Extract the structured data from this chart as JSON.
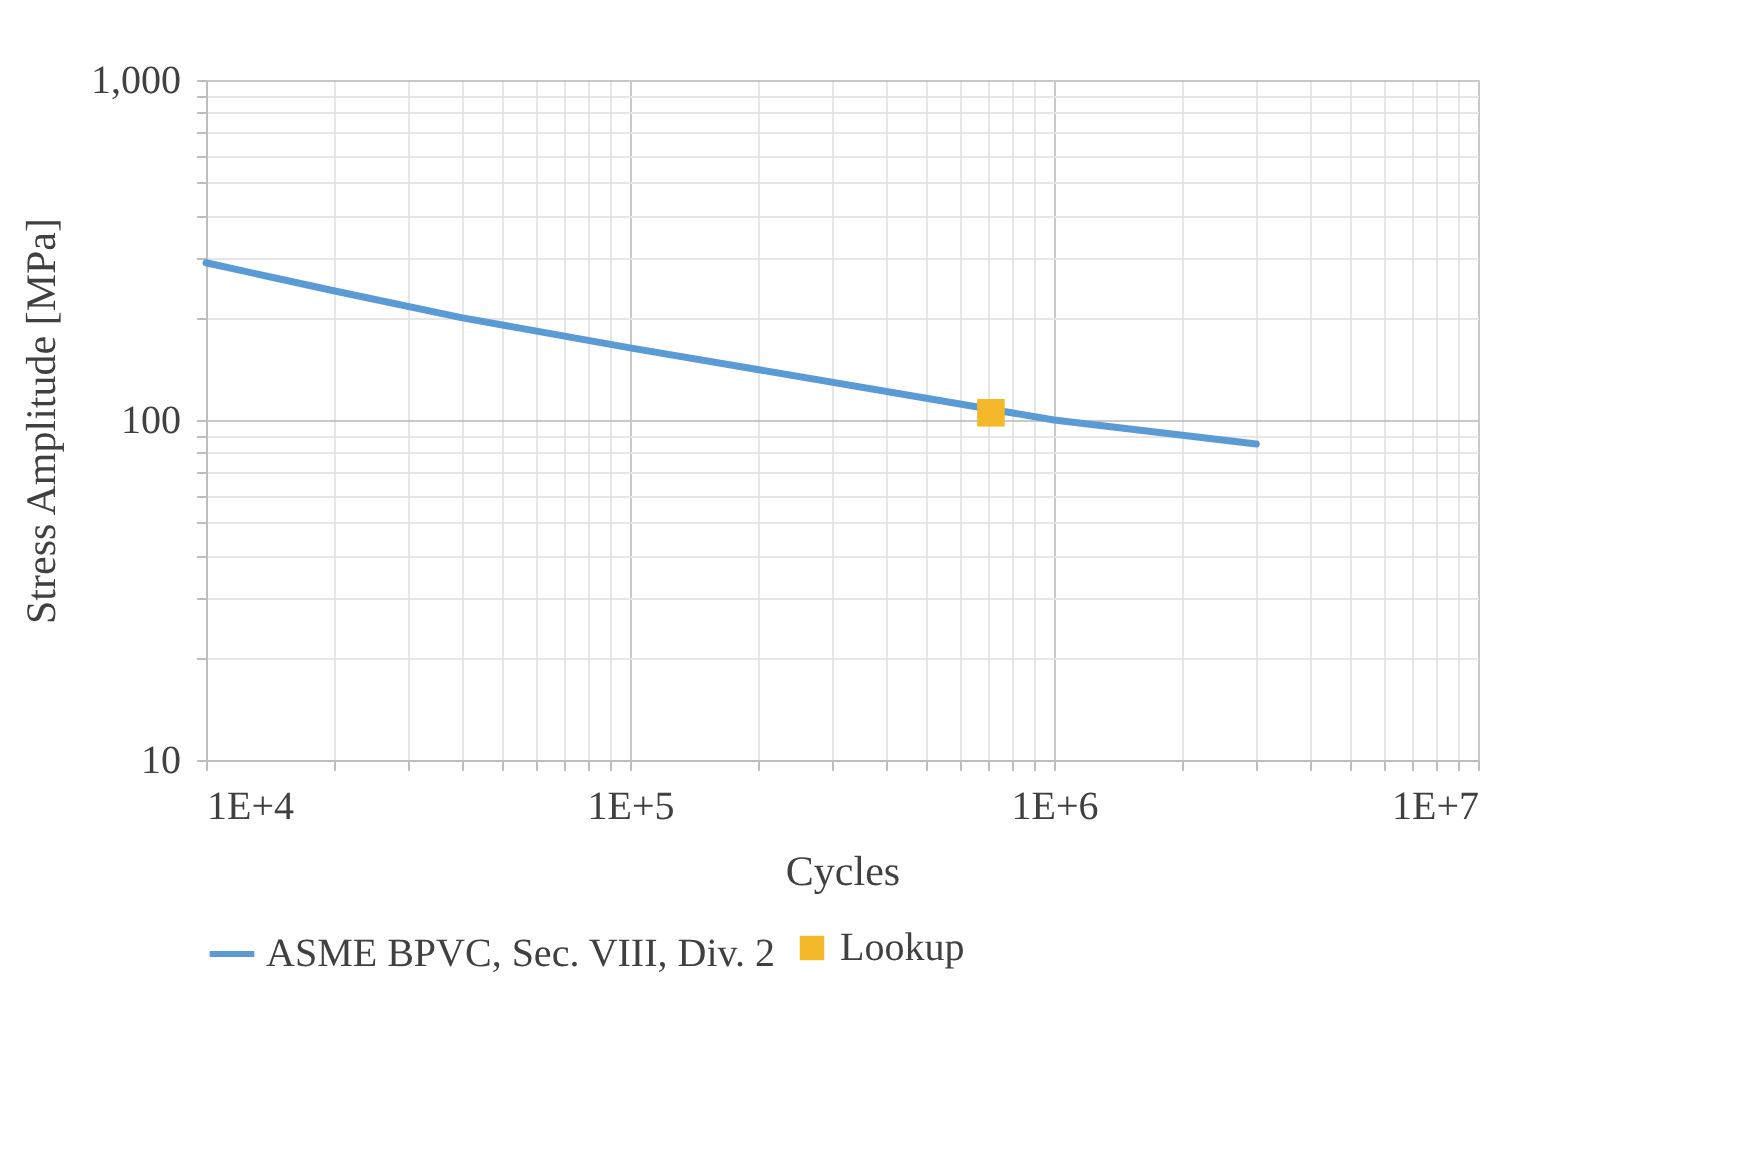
{
  "chart_data": {
    "type": "line",
    "xlabel": "Cycles",
    "ylabel": "Stress Amplitude [MPa]",
    "log": "xy",
    "grid": true,
    "legend": "bottom",
    "xlim": [
      10000,
      10000000
    ],
    "xticks": [
      {
        "value": 10000,
        "label": "1E+4"
      },
      {
        "value": 100000,
        "label": "1E+5"
      },
      {
        "value": 1000000,
        "label": "1E+6"
      },
      {
        "value": 10000000,
        "label": "1E+7"
      }
    ],
    "ylim": [
      10,
      1000
    ],
    "yticks": [
      10,
      100,
      {
        "value": 1000,
        "label": "1,000"
      }
    ],
    "series": [
      {
        "name": "ASME BPVC, Sec. VIII, Div. 2",
        "color": "#5b9bd5",
        "x": [
          10000,
          20000,
          40000,
          100000,
          1000000,
          3000000
        ],
        "values": [
          290,
          240,
          200,
          163,
          100,
          85
        ]
      },
      {
        "name": "Lookup",
        "type": "scatter",
        "marker": "square",
        "color": "#f4b92b",
        "x": [
          710000
        ],
        "values": [
          105
        ]
      }
    ]
  }
}
